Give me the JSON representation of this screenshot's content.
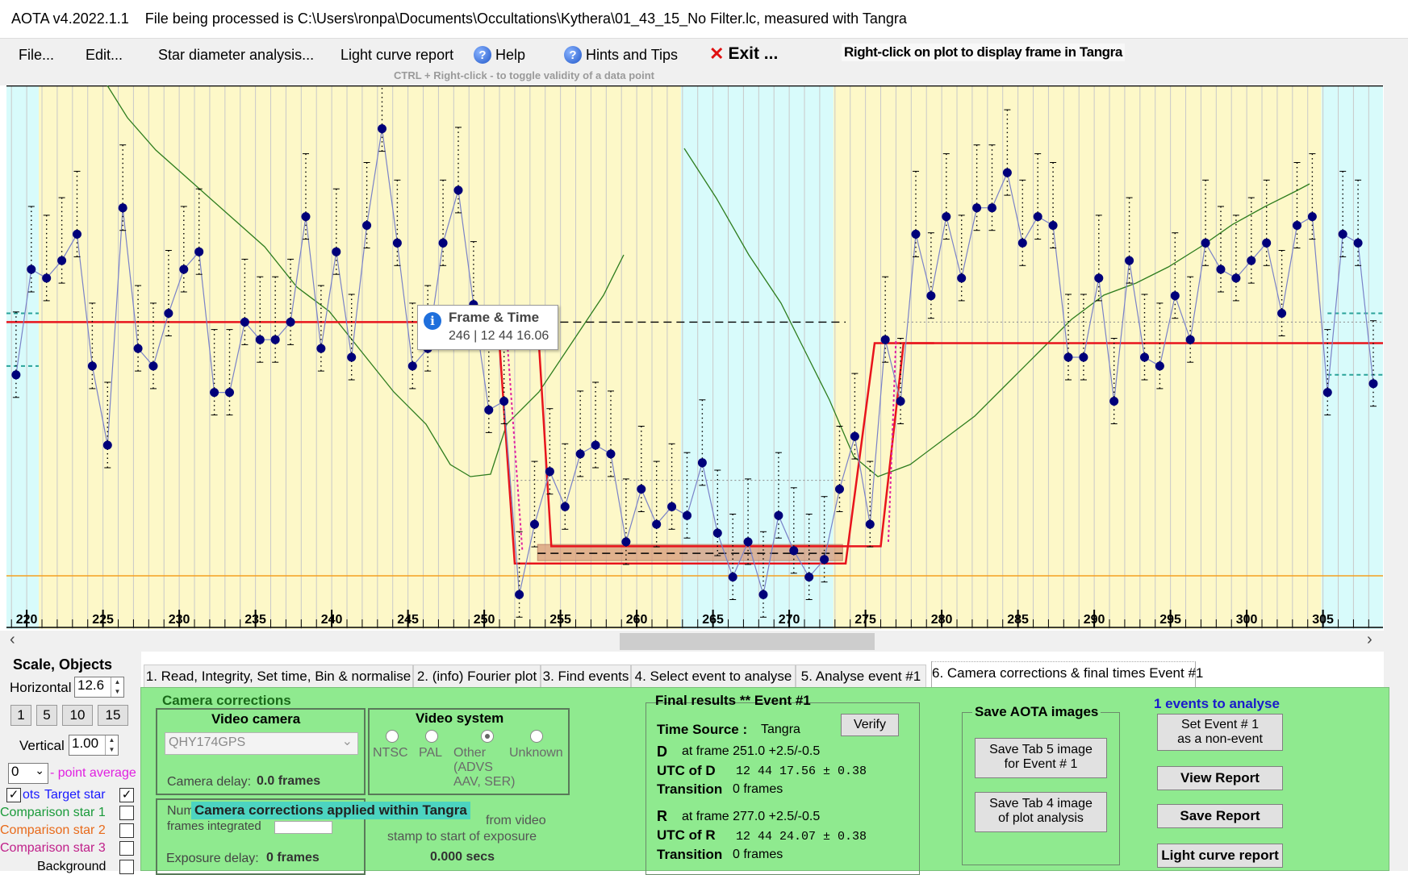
{
  "window": {
    "app_title": "AOTA v4.2022.1.1",
    "file_status": "File being processed is C:\\Users\\ronpa\\Documents\\Occultations\\Kythera\\01_43_15_No Filter.lc, measured with Tangra"
  },
  "menu": {
    "file": "File...",
    "edit": "Edit...",
    "star_diameter": "Star diameter analysis...",
    "light_curve_report": "Light curve report",
    "help": "Help",
    "hints": "Hints and Tips",
    "exit": "Exit ...",
    "help_icon": "help-icon",
    "exit_icon": "close-icon"
  },
  "hints": {
    "right_click": "Right-click on plot to display frame in Tangra",
    "ctrl_right_click": "CTRL + Right-click  -  to toggle validity of a data point"
  },
  "tooltip": {
    "title": "Frame & Time",
    "value": "246 | 12 44 16.06",
    "icon": "info-icon"
  },
  "chart_data": {
    "type": "scatter",
    "x_ticks": [
      "220",
      "225",
      "230",
      "235",
      "240",
      "245",
      "250",
      "255",
      "260",
      "265",
      "270",
      "275",
      "280",
      "285",
      "290",
      "295",
      "300",
      "305"
    ],
    "xlim": [
      219,
      309
    ],
    "colors": {
      "data_points": "#00007a",
      "model_line": "#e8141c",
      "smoothed_line": "#2e7d1e",
      "baseline_band": "#fdf8c8",
      "event_band": "#d8fbfb",
      "orange_line": "#f5a020"
    },
    "points": [
      [
        219.3,
        92
      ],
      [
        220.3,
        80
      ],
      [
        221.3,
        81
      ],
      [
        222.3,
        79
      ],
      [
        223.3,
        76
      ],
      [
        224.3,
        91
      ],
      [
        225.3,
        100
      ],
      [
        226.3,
        73
      ],
      [
        227.3,
        89
      ],
      [
        228.3,
        91
      ],
      [
        229.3,
        85
      ],
      [
        230.3,
        80
      ],
      [
        231.3,
        78
      ],
      [
        232.3,
        94
      ],
      [
        233.3,
        94
      ],
      [
        234.3,
        86
      ],
      [
        235.3,
        88
      ],
      [
        236.3,
        88
      ],
      [
        237.3,
        86
      ],
      [
        238.3,
        74
      ],
      [
        239.3,
        89
      ],
      [
        240.3,
        78
      ],
      [
        241.3,
        90
      ],
      [
        242.3,
        75
      ],
      [
        243.3,
        64
      ],
      [
        244.3,
        77
      ],
      [
        245.3,
        91
      ],
      [
        246.3,
        89
      ],
      [
        247.3,
        77
      ],
      [
        248.3,
        71
      ],
      [
        249.3,
        84
      ],
      [
        250.3,
        96
      ],
      [
        251.3,
        95
      ],
      [
        252.3,
        117
      ],
      [
        253.3,
        109
      ],
      [
        254.3,
        103
      ],
      [
        255.3,
        107
      ],
      [
        256.3,
        101
      ],
      [
        257.3,
        100
      ],
      [
        258.3,
        101
      ],
      [
        259.3,
        111
      ],
      [
        260.3,
        105
      ],
      [
        261.3,
        109
      ],
      [
        262.3,
        107
      ],
      [
        263.3,
        108
      ],
      [
        264.3,
        102
      ],
      [
        265.3,
        110
      ],
      [
        266.3,
        115
      ],
      [
        267.3,
        111
      ],
      [
        268.3,
        117
      ],
      [
        269.3,
        108
      ],
      [
        270.3,
        112
      ],
      [
        271.3,
        115
      ],
      [
        272.3,
        113
      ],
      [
        273.3,
        105
      ],
      [
        274.3,
        99
      ],
      [
        275.3,
        109
      ],
      [
        276.3,
        88
      ],
      [
        277.3,
        95
      ],
      [
        278.3,
        76
      ],
      [
        279.3,
        83
      ],
      [
        280.3,
        74
      ],
      [
        281.3,
        81
      ],
      [
        282.3,
        73
      ],
      [
        283.3,
        73
      ],
      [
        284.3,
        69
      ],
      [
        285.3,
        77
      ],
      [
        286.3,
        74
      ],
      [
        287.3,
        75
      ],
      [
        288.3,
        90
      ],
      [
        289.3,
        90
      ],
      [
        290.3,
        81
      ],
      [
        291.3,
        95
      ],
      [
        292.3,
        79
      ],
      [
        293.3,
        90
      ],
      [
        294.3,
        91
      ],
      [
        295.3,
        83
      ],
      [
        296.3,
        88
      ],
      [
        297.3,
        77
      ],
      [
        298.3,
        80
      ],
      [
        299.3,
        81
      ],
      [
        300.3,
        79
      ],
      [
        301.3,
        77
      ],
      [
        302.3,
        85
      ],
      [
        303.3,
        75
      ],
      [
        304.3,
        74
      ],
      [
        305.3,
        94
      ],
      [
        306.3,
        76
      ],
      [
        307.3,
        77
      ],
      [
        308.3,
        93
      ]
    ],
    "event_regions": [
      [
        251.5,
        253.5
      ],
      [
        273.5,
        276.5
      ]
    ],
    "normal_level": 86,
    "event_level": 113,
    "event_D_frame": 251.0,
    "event_R_frame": 277.0
  },
  "scale_panel": {
    "title": "Scale,  Objects",
    "horizontal_label": "Horizontal",
    "horizontal_value": "12.6",
    "presets": [
      "1",
      "5",
      "10",
      "15"
    ],
    "vertical_label": "Vertical",
    "vertical_value": "1.00",
    "point_average_value": "0",
    "point_average_label": "- point average",
    "objects": [
      {
        "label": "ots",
        "checked": true
      },
      {
        "label": "Target star",
        "color": "#1a1aff",
        "checked": true
      },
      {
        "label": "Comparison star 1",
        "color": "#1a9a3a",
        "checked": false
      },
      {
        "label": "Comparison star 2",
        "color": "#e86a1a",
        "checked": false
      },
      {
        "label": "Comparison star 3",
        "color": "#c0208a",
        "checked": false
      },
      {
        "label": "Background",
        "checked": false
      }
    ]
  },
  "tabs": [
    "1.  Read, Integrity, Set time, Bin & normalise",
    "2. (info)  Fourier plot",
    "3. Find events",
    "4. Select event to analyse",
    "5. Analyse event #1",
    "6. Camera corrections & final times Event #1"
  ],
  "camera_corrections": {
    "title": "Camera corrections",
    "video_camera_title": "Video camera",
    "camera_value": "QHY174GPS",
    "camera_delay_label": "Camera delay:",
    "camera_delay_value": "0.0 frames",
    "video_system_title": "Video system",
    "radio": [
      "NTSC",
      "PAL",
      "Other",
      "Unknown"
    ],
    "other_sub": "(ADVS\nAAV, SER)",
    "num_frames_label": "Num",
    "frames_integrated": "frames integrated",
    "exposure_delay_label": "Exposure delay:",
    "exposure_delay_value": "0 frames",
    "video_stamp_1": "from video",
    "video_stamp_2": "stamp to start of exposure",
    "secs_value": "0.000 secs",
    "overlay": "Camera corrections applied within Tangra"
  },
  "final_results": {
    "title": "Final results  **  Event #1",
    "time_source_label": "Time Source :",
    "time_source_value": "Tangra",
    "verify": "Verify",
    "d_label": "D",
    "d_frame": "at frame 251.0  +2.5/-0.5",
    "utc_d_label": "UTC of D",
    "utc_d_value": "12 44 17.56  ± 0.38",
    "transition_label": "Transition",
    "transition_d_value": "0 frames",
    "r_label": "R",
    "r_frame": "at frame 277.0  +2.5/-0.5",
    "utc_r_label": "UTC of R",
    "utc_r_value": "12 44 24.07  ± 0.38",
    "transition_r_value": "0 frames"
  },
  "save_images": {
    "title": "Save AOTA images",
    "tab5": "Save Tab 5 image\nfor Event # 1",
    "tab4": "Save Tab 4 image\nof plot analysis"
  },
  "report_panel": {
    "events_to_analyse": "1  events to analyse",
    "set_non_event": "Set Event # 1\nas a non-event",
    "view_report": "View Report",
    "save_report": "Save Report",
    "light_curve_report": "Light curve report"
  }
}
